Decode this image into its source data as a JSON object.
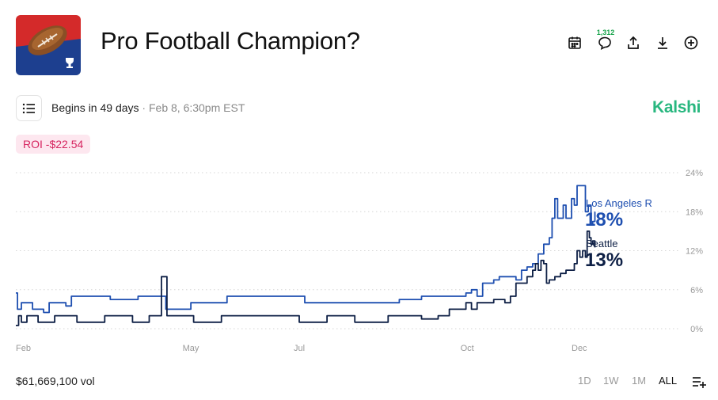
{
  "header": {
    "title": "Pro Football Champion?",
    "comment_count": "1,312"
  },
  "info": {
    "begins": "Begins in 49 days",
    "separator": "·",
    "event_date": "Feb 8, 6:30pm EST",
    "brand": "Kalshi",
    "brand_color": "#28b77f"
  },
  "roi": {
    "label": "ROI -$22.54"
  },
  "footer": {
    "volume": "$61,669,100 vol",
    "ranges": [
      "1D",
      "1W",
      "1M",
      "ALL"
    ],
    "active_range": "ALL"
  },
  "chart_data": {
    "type": "line",
    "x_ticks": [
      "Feb",
      "May",
      "Jul",
      "Oct",
      "Dec"
    ],
    "x_tick_positions": [
      0,
      3,
      5,
      8,
      10
    ],
    "x_range": [
      0,
      10
    ],
    "y_ticks": [
      "24%",
      "18%",
      "12%",
      "6%",
      "0%"
    ],
    "y_tick_values": [
      24,
      18,
      12,
      6,
      0
    ],
    "ylim": [
      0,
      24
    ],
    "grid": true,
    "series": [
      {
        "name": "Los Angeles R",
        "value_label": "18%",
        "color": "#1e4fb0",
        "points": [
          [
            0,
            5.5
          ],
          [
            0.03,
            3
          ],
          [
            0.1,
            4
          ],
          [
            0.2,
            4
          ],
          [
            0.3,
            3
          ],
          [
            0.4,
            3
          ],
          [
            0.5,
            2.5
          ],
          [
            0.6,
            4
          ],
          [
            0.8,
            4
          ],
          [
            0.9,
            3.5
          ],
          [
            1.0,
            5
          ],
          [
            1.5,
            5
          ],
          [
            1.7,
            4.5
          ],
          [
            2.0,
            4.5
          ],
          [
            2.2,
            5
          ],
          [
            2.6,
            5
          ],
          [
            2.7,
            3
          ],
          [
            3.1,
            3
          ],
          [
            3.15,
            4
          ],
          [
            3.5,
            4
          ],
          [
            3.8,
            5
          ],
          [
            4.3,
            5
          ],
          [
            4.5,
            5
          ],
          [
            5.0,
            5
          ],
          [
            5.2,
            4
          ],
          [
            6.0,
            4
          ],
          [
            6.2,
            4
          ],
          [
            6.8,
            4
          ],
          [
            6.9,
            4.5
          ],
          [
            7.2,
            4.5
          ],
          [
            7.3,
            5
          ],
          [
            7.8,
            5
          ],
          [
            8.0,
            5
          ],
          [
            8.1,
            5.5
          ],
          [
            8.2,
            6
          ],
          [
            8.3,
            5
          ],
          [
            8.4,
            7
          ],
          [
            8.5,
            7
          ],
          [
            8.6,
            7.5
          ],
          [
            8.7,
            8
          ],
          [
            8.9,
            8
          ],
          [
            9.0,
            7.5
          ],
          [
            9.1,
            9
          ],
          [
            9.2,
            9.5
          ],
          [
            9.3,
            10
          ],
          [
            9.4,
            11.5
          ],
          [
            9.5,
            13
          ],
          [
            9.6,
            14
          ],
          [
            9.65,
            17
          ],
          [
            9.7,
            20
          ],
          [
            9.75,
            17
          ],
          [
            9.8,
            17
          ],
          [
            9.85,
            19
          ],
          [
            9.9,
            17
          ],
          [
            10.0,
            20
          ],
          [
            10.05,
            19
          ],
          [
            10.1,
            22
          ],
          [
            10.2,
            22
          ],
          [
            10.25,
            18
          ],
          [
            10.3,
            19
          ],
          [
            10.35,
            16
          ],
          [
            10.38,
            16.5
          ],
          [
            10.42,
            18
          ]
        ]
      },
      {
        "name": "Seattle",
        "value_label": "13%",
        "color": "#0d1f45",
        "points": [
          [
            0,
            0.5
          ],
          [
            0.05,
            2
          ],
          [
            0.1,
            1
          ],
          [
            0.15,
            1
          ],
          [
            0.2,
            2
          ],
          [
            0.3,
            2
          ],
          [
            0.4,
            1
          ],
          [
            0.6,
            1
          ],
          [
            0.7,
            2
          ],
          [
            1.0,
            2
          ],
          [
            1.1,
            1
          ],
          [
            1.5,
            1
          ],
          [
            1.6,
            2
          ],
          [
            2.0,
            2
          ],
          [
            2.1,
            1
          ],
          [
            2.3,
            1
          ],
          [
            2.4,
            2
          ],
          [
            2.6,
            2
          ],
          [
            2.62,
            8
          ],
          [
            2.7,
            8
          ],
          [
            2.72,
            2
          ],
          [
            3.0,
            2
          ],
          [
            3.2,
            1
          ],
          [
            3.6,
            1
          ],
          [
            3.7,
            2
          ],
          [
            4.5,
            2
          ],
          [
            5.0,
            2
          ],
          [
            5.1,
            1
          ],
          [
            5.5,
            1
          ],
          [
            5.6,
            2
          ],
          [
            6.0,
            2
          ],
          [
            6.1,
            1
          ],
          [
            6.6,
            1
          ],
          [
            6.7,
            2
          ],
          [
            7.2,
            2
          ],
          [
            7.3,
            1.5
          ],
          [
            7.6,
            2
          ],
          [
            7.8,
            3
          ],
          [
            8.0,
            3
          ],
          [
            8.1,
            4
          ],
          [
            8.2,
            3
          ],
          [
            8.3,
            4
          ],
          [
            8.5,
            4
          ],
          [
            8.6,
            4.5
          ],
          [
            8.8,
            4
          ],
          [
            8.9,
            5
          ],
          [
            9.0,
            7
          ],
          [
            9.1,
            7
          ],
          [
            9.2,
            8
          ],
          [
            9.3,
            9
          ],
          [
            9.35,
            10
          ],
          [
            9.4,
            9
          ],
          [
            9.45,
            10.5
          ],
          [
            9.5,
            10
          ],
          [
            9.55,
            7
          ],
          [
            9.6,
            7.5
          ],
          [
            9.7,
            8
          ],
          [
            9.8,
            8.5
          ],
          [
            9.9,
            9
          ],
          [
            10.0,
            9
          ],
          [
            10.05,
            10
          ],
          [
            10.1,
            12
          ],
          [
            10.15,
            11
          ],
          [
            10.2,
            12
          ],
          [
            10.25,
            11
          ],
          [
            10.28,
            15
          ],
          [
            10.32,
            14
          ],
          [
            10.35,
            13
          ],
          [
            10.38,
            13.5
          ],
          [
            10.42,
            12.5
          ]
        ]
      }
    ]
  }
}
